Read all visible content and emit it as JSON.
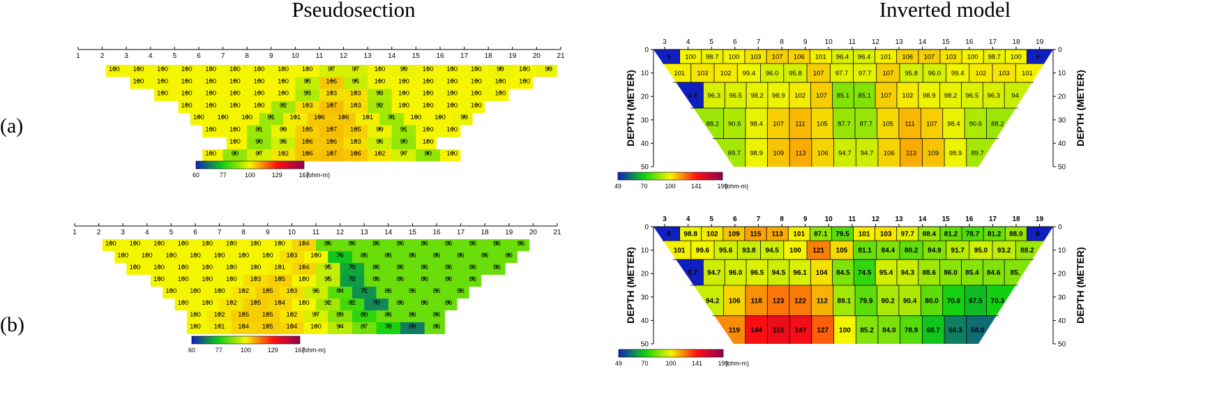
{
  "titles": {
    "left": "Pseudosection",
    "right": "Inverted model"
  },
  "row_labels": [
    "(a)",
    "(b)"
  ],
  "colors": {
    "stops": [
      "#1020c0",
      "#10d010",
      "#f5f500",
      "#ff1010",
      "#900050"
    ]
  },
  "chart_data": [
    {
      "type": "heatmap",
      "panel": "pseudosection-a",
      "x_ticks": [
        1,
        2,
        3,
        4,
        5,
        6,
        7,
        8,
        9,
        10,
        11,
        12,
        13,
        14,
        15,
        16,
        17,
        18,
        19,
        20,
        21
      ],
      "rows": [
        [
          100,
          100,
          100,
          100,
          100,
          100,
          100,
          100,
          100,
          97,
          97,
          100,
          99,
          100,
          100,
          100,
          99,
          100,
          99
        ],
        [
          100,
          100,
          100,
          100,
          100,
          100,
          100,
          95,
          106,
          95,
          100,
          100,
          100,
          100,
          100,
          100,
          100
        ],
        [
          100,
          100,
          100,
          100,
          100,
          100,
          93,
          103,
          103,
          93,
          100,
          100,
          100,
          100,
          100
        ],
        [
          100,
          100,
          100,
          100,
          92,
          103,
          107,
          103,
          92,
          100,
          100,
          100,
          100
        ],
        [
          100,
          100,
          100,
          91,
          101,
          106,
          106,
          101,
          91,
          100,
          100,
          99
        ],
        [
          100,
          100,
          91,
          99,
          105,
          107,
          105,
          99,
          91,
          100,
          100
        ],
        [
          100,
          90,
          96,
          106,
          106,
          103,
          96,
          90,
          100
        ],
        [
          100,
          90,
          97,
          102,
          106,
          107,
          106,
          102,
          97,
          90,
          100
        ]
      ],
      "colorbar": {
        "ticks": [
          "60",
          "77",
          "100",
          "129",
          "167"
        ],
        "unit": "(ohm-m)"
      }
    },
    {
      "type": "heatmap",
      "panel": "inverted-model-a",
      "x_ticks": [
        "3",
        "4",
        "5",
        "6",
        "7",
        "8",
        "9",
        "10",
        "11",
        "12",
        "13",
        "14",
        "15",
        "16",
        "17",
        "18",
        "19"
      ],
      "ylabel": "DEPTH (METER)",
      "y_ticks": [
        "0",
        "10",
        "20",
        "30",
        "40",
        "50"
      ],
      "rows": [
        [
          "9",
          "100",
          "98.7",
          "100",
          "103",
          "107",
          "106",
          "101",
          "96.4",
          "96.4",
          "101",
          "106",
          "107",
          "103",
          "100",
          "98.7",
          "100",
          "9"
        ],
        [
          "101",
          "103",
          "102",
          "99.4",
          "96.0",
          "95.8",
          "107",
          "97.7",
          "97.7",
          "107",
          "95.8",
          "96.0",
          "99.4",
          "102",
          "103",
          "101"
        ],
        [
          "4.8",
          "96.3",
          "96.5",
          "98.2",
          "98.9",
          "102",
          "107",
          "85.1",
          "85.1",
          "107",
          "102",
          "98.9",
          "98.2",
          "96.5",
          "96.3",
          "94"
        ],
        [
          "88.2",
          "90.6",
          "98.4",
          "107",
          "111",
          "105",
          "87.7",
          "87.7",
          "105",
          "111",
          "107",
          "98.4",
          "90.6",
          "88.2"
        ],
        [
          "89.7",
          "98.9",
          "109",
          "113",
          "106",
          "94.7",
          "94.7",
          "106",
          "113",
          "109",
          "98.9",
          "89.7"
        ]
      ],
      "colorbar": {
        "ticks": [
          "49",
          "70",
          "100",
          "141",
          "199"
        ],
        "unit": "(ohm-m)"
      }
    },
    {
      "type": "heatmap",
      "panel": "pseudosection-b",
      "x_ticks": [
        1,
        2,
        3,
        4,
        5,
        6,
        7,
        8,
        9,
        10,
        11,
        12,
        13,
        14,
        15,
        16,
        17,
        18,
        19,
        20,
        21
      ],
      "rows": [
        [
          100,
          100,
          100,
          100,
          100,
          100,
          100,
          100,
          104,
          86,
          86,
          86,
          86,
          86,
          86,
          86,
          86,
          86
        ],
        [
          100,
          100,
          100,
          100,
          100,
          100,
          100,
          103,
          100,
          76,
          86,
          86,
          86,
          86,
          86,
          86,
          86
        ],
        [
          100,
          100,
          100,
          100,
          100,
          100,
          101,
          104,
          95,
          73,
          86,
          86,
          86,
          86,
          86,
          86
        ],
        [
          100,
          100,
          100,
          100,
          103,
          105,
          100,
          95,
          72,
          86,
          86,
          86,
          86,
          86
        ],
        [
          100,
          100,
          100,
          102,
          105,
          103,
          96,
          84,
          71,
          86,
          86,
          86,
          86
        ],
        [
          100,
          100,
          102,
          105,
          104,
          100,
          92,
          82,
          70,
          86,
          86,
          86
        ],
        [
          100,
          102,
          105,
          105,
          102,
          97,
          89,
          80,
          86,
          86,
          86
        ],
        [
          100,
          101,
          104,
          105,
          104,
          100,
          94,
          87,
          78,
          69,
          86
        ]
      ],
      "colorbar": {
        "ticks": [
          "60",
          "77",
          "100",
          "129",
          "167"
        ],
        "unit": "(ohm-m)"
      }
    },
    {
      "type": "heatmap",
      "panel": "inverted-model-b",
      "x_ticks": [
        "3",
        "4",
        "5",
        "6",
        "7",
        "8",
        "9",
        "10",
        "11",
        "12",
        "13",
        "14",
        "15",
        "16",
        "17",
        "18",
        "19"
      ],
      "ylabel": "DEPTH (METER)",
      "y_ticks": [
        "0",
        "10",
        "20",
        "30",
        "40",
        "50"
      ],
      "rows": [
        [
          "9",
          "98.8",
          "102",
          "109",
          "115",
          "113",
          "101",
          "87.1",
          "79.5",
          "101",
          "103",
          "97.7",
          "88.4",
          "81.2",
          "78.7",
          "81.2",
          "88.0",
          "9"
        ],
        [
          "101",
          "99.6",
          "95.6",
          "93.8",
          "94.5",
          "100",
          "121",
          "105",
          "81.1",
          "84.4",
          "80.2",
          "84.9",
          "91.7",
          "95.0",
          "93.2",
          "88.2"
        ],
        [
          "0.7",
          "94.7",
          "96.0",
          "96.5",
          "94.5",
          "96.1",
          "104",
          "84.5",
          "74.5",
          "95.4",
          "94.3",
          "88.6",
          "86.0",
          "85.4",
          "84.6",
          "85."
        ],
        [
          "94.2",
          "106",
          "118",
          "123",
          "122",
          "112",
          "89.1",
          "79.9",
          "90.2",
          "90.4",
          "80.0",
          "70.6",
          "67.5",
          "70.3"
        ],
        [
          "119",
          "144",
          "151",
          "147",
          "127",
          "100",
          "85.2",
          "84.0",
          "78.9",
          "68.7",
          "60.3",
          "58.0"
        ]
      ],
      "colorbar": {
        "ticks": [
          "49",
          "70",
          "100",
          "141",
          "199"
        ],
        "unit": "(ohm-m)"
      }
    }
  ]
}
